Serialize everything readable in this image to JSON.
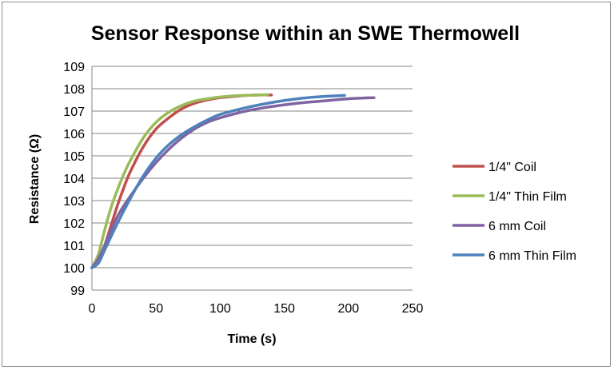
{
  "chart_data": {
    "type": "line",
    "title": "Sensor Response within an SWE Thermowell",
    "xlabel": "Time (s)",
    "ylabel": "Resistance (Ω)",
    "xlim": [
      0,
      250
    ],
    "ylim": [
      99,
      109
    ],
    "xticks": [
      "0",
      "50",
      "100",
      "150",
      "200",
      "250"
    ],
    "yticks": [
      "99",
      "100",
      "101",
      "102",
      "103",
      "104",
      "105",
      "106",
      "107",
      "108",
      "109"
    ],
    "grid": "horizontal",
    "legend": "right",
    "series": [
      {
        "name": "1/4\" Coil",
        "color": "#c0504d",
        "x": [
          0,
          5,
          10,
          15,
          20,
          25,
          30,
          40,
          50,
          60,
          70,
          80,
          90,
          100,
          110,
          120,
          130,
          140
        ],
        "y": [
          100.0,
          100.3,
          101.0,
          101.9,
          102.8,
          103.6,
          104.3,
          105.4,
          106.2,
          106.7,
          107.1,
          107.35,
          107.5,
          107.6,
          107.65,
          107.7,
          107.72,
          107.72
        ]
      },
      {
        "name": "1/4\" Thin Film",
        "color": "#9bbb59",
        "x": [
          0,
          5,
          10,
          15,
          20,
          25,
          30,
          40,
          50,
          60,
          70,
          80,
          90,
          100,
          110,
          120,
          130,
          137
        ],
        "y": [
          100.0,
          100.6,
          101.7,
          102.7,
          103.5,
          104.2,
          104.8,
          105.8,
          106.5,
          106.95,
          107.25,
          107.45,
          107.55,
          107.63,
          107.68,
          107.7,
          107.72,
          107.73
        ]
      },
      {
        "name": "6 mm Coil",
        "color": "#8064a2",
        "x": [
          0,
          5,
          10,
          20,
          30,
          40,
          50,
          60,
          70,
          80,
          90,
          100,
          120,
          140,
          160,
          180,
          200,
          220
        ],
        "y": [
          100.0,
          100.4,
          101.0,
          102.3,
          103.2,
          104.0,
          104.7,
          105.3,
          105.8,
          106.2,
          106.5,
          106.7,
          107.0,
          107.2,
          107.35,
          107.45,
          107.55,
          107.6
        ]
      },
      {
        "name": "6 mm Thin Film",
        "color": "#4f81bd",
        "x": [
          0,
          5,
          10,
          20,
          30,
          40,
          50,
          60,
          70,
          80,
          90,
          100,
          120,
          140,
          160,
          180,
          197
        ],
        "y": [
          100.0,
          100.2,
          100.8,
          102.0,
          103.1,
          104.1,
          104.9,
          105.5,
          105.95,
          106.3,
          106.6,
          106.85,
          107.15,
          107.38,
          107.55,
          107.65,
          107.7
        ]
      }
    ]
  }
}
